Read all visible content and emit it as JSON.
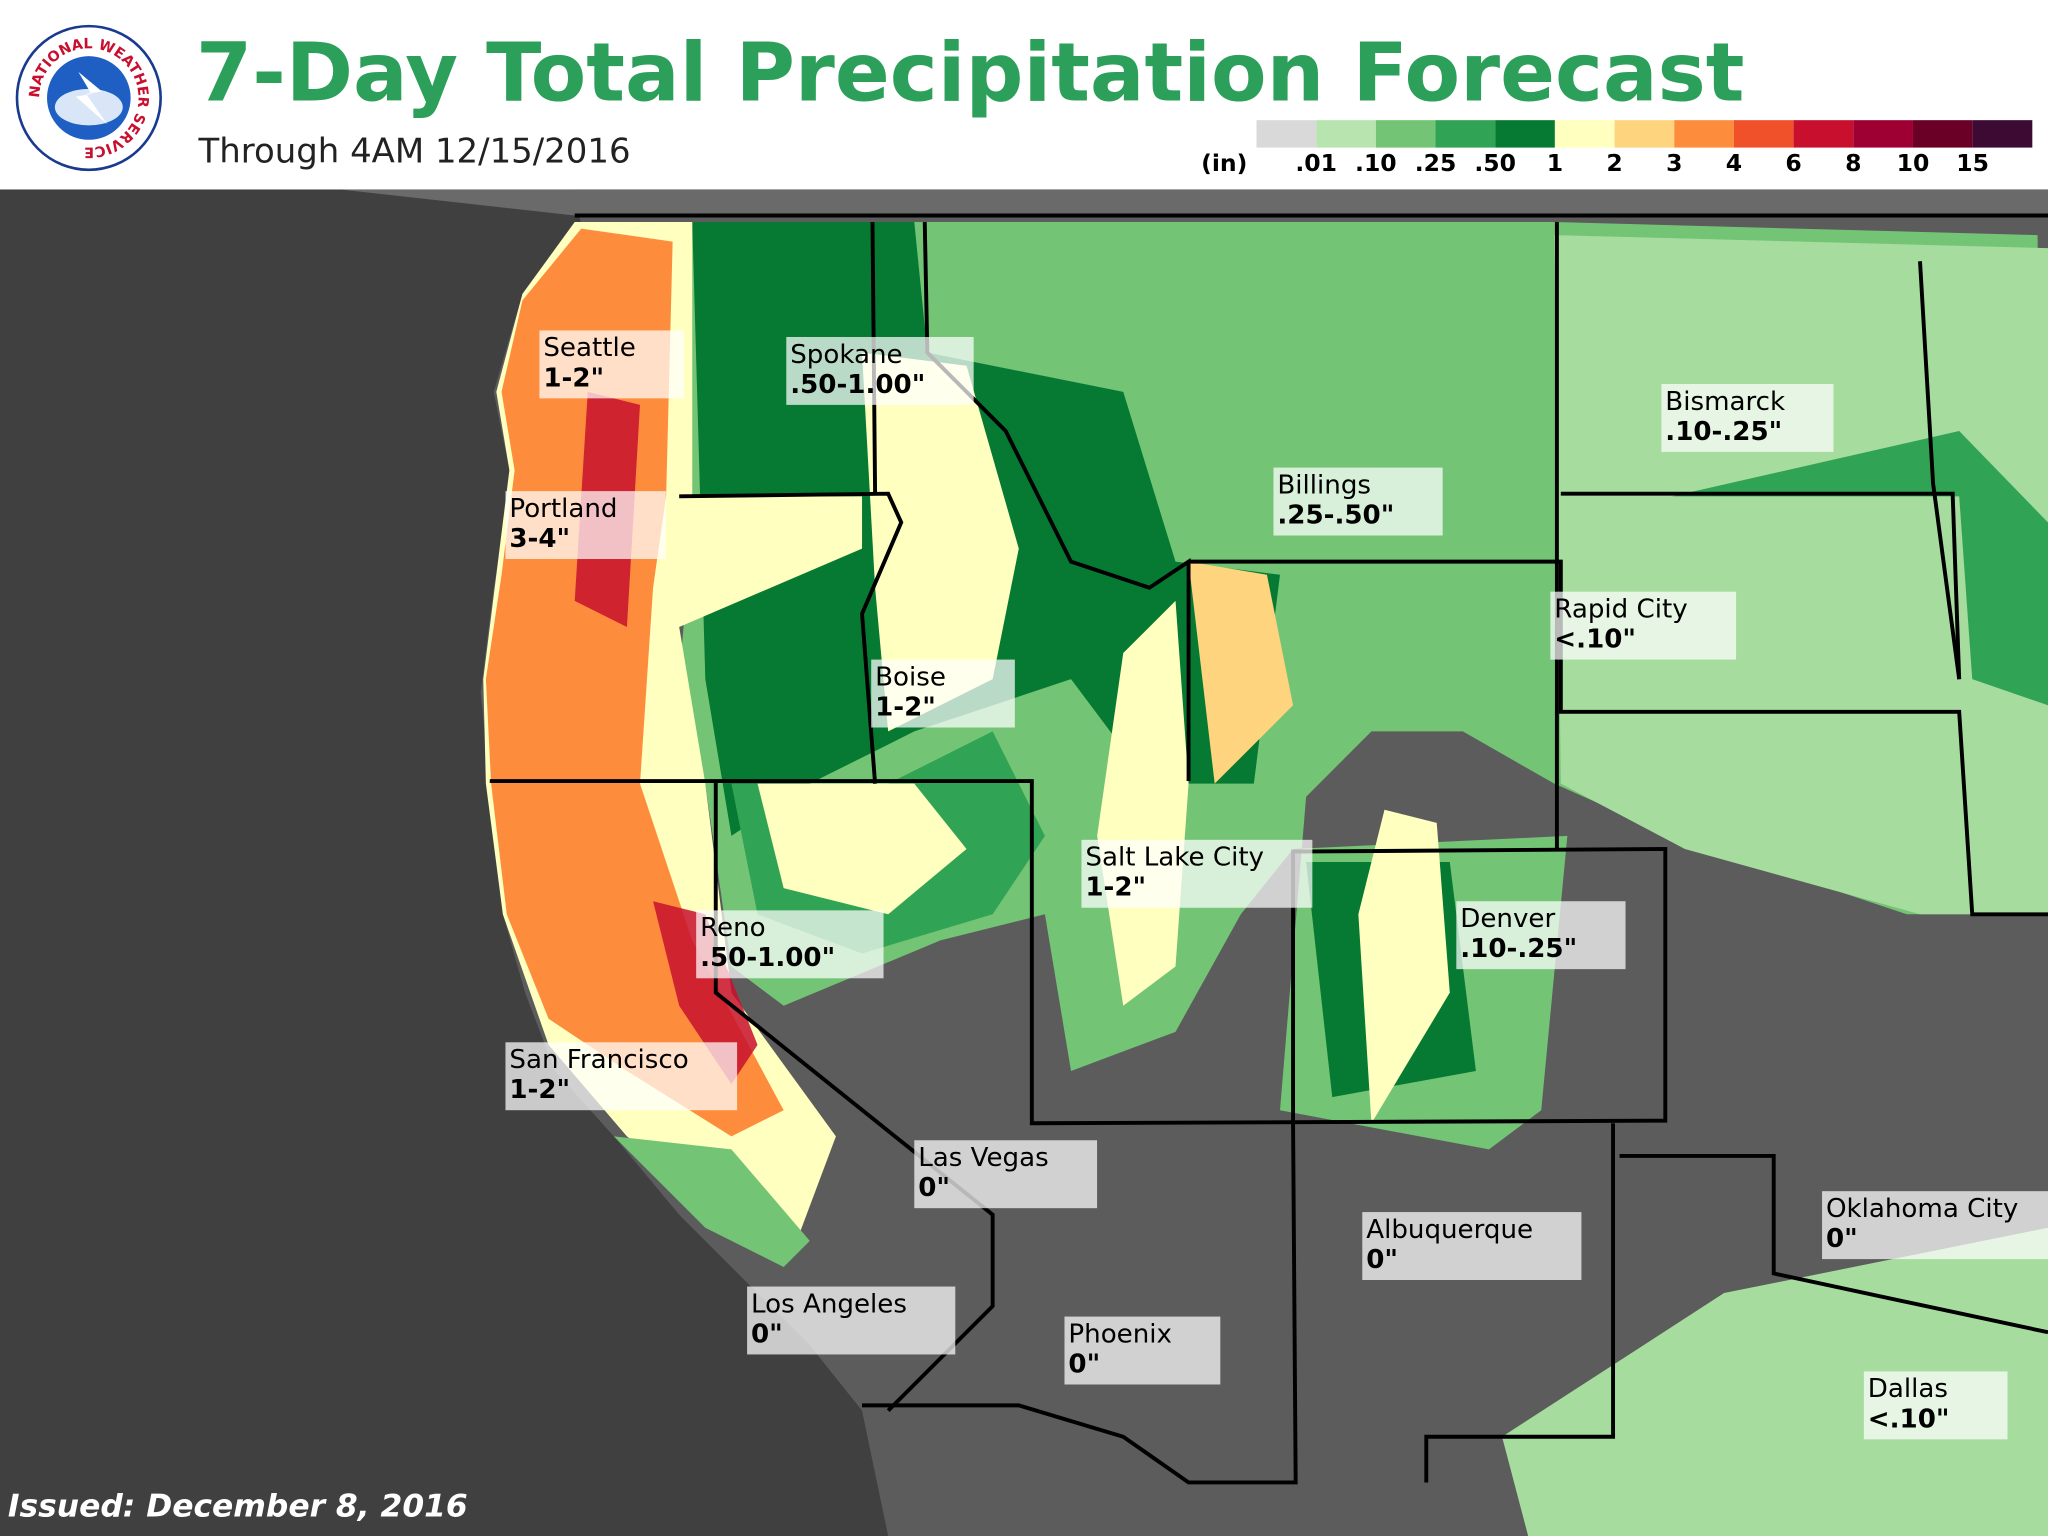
{
  "header": {
    "title": "7-Day Total Precipitation Forecast",
    "subtitle": "Through 4AM 12/15/2016",
    "logo_text": "NATIONAL WEATHER SERVICE"
  },
  "legend": {
    "unit": "(in)",
    "labels": [
      ".01",
      ".10",
      ".25",
      ".50",
      "1",
      "2",
      "3",
      "4",
      "6",
      "8",
      "10",
      "15"
    ],
    "colors": [
      "#d9d9d9",
      "#b8e4b0",
      "#74c476",
      "#31a354",
      "#067a32",
      "#ffffbf",
      "#fed47f",
      "#fd8d3c",
      "#f0502a",
      "#c8102e",
      "#9e0033",
      "#6b0026",
      "#3d0a33"
    ]
  },
  "cities": [
    {
      "name": "Seattle",
      "amount": "1-2\""
    },
    {
      "name": "Spokane",
      "amount": ".50-1.00\""
    },
    {
      "name": "Portland",
      "amount": "3-4\""
    },
    {
      "name": "Billings",
      "amount": ".25-.50\""
    },
    {
      "name": "Bismarck",
      "amount": ".10-.25\""
    },
    {
      "name": "Rapid City",
      "amount": "<.10\""
    },
    {
      "name": "Boise",
      "amount": "1-2\""
    },
    {
      "name": "Salt Lake City",
      "amount": "1-2\""
    },
    {
      "name": "Reno",
      "amount": ".50-1.00\""
    },
    {
      "name": "Denver",
      "amount": ".10-.25\""
    },
    {
      "name": "San Francisco",
      "amount": "1-2\""
    },
    {
      "name": "Las Vegas",
      "amount": "0\""
    },
    {
      "name": "Albuquerque",
      "amount": "0\""
    },
    {
      "name": "Oklahoma City",
      "amount": "0\""
    },
    {
      "name": "Los Angeles",
      "amount": "0\""
    },
    {
      "name": "Phoenix",
      "amount": "0\""
    },
    {
      "name": "Dallas",
      "amount": "<.10\""
    }
  ],
  "footer": {
    "issued": "Issued: December 8, 2016"
  }
}
